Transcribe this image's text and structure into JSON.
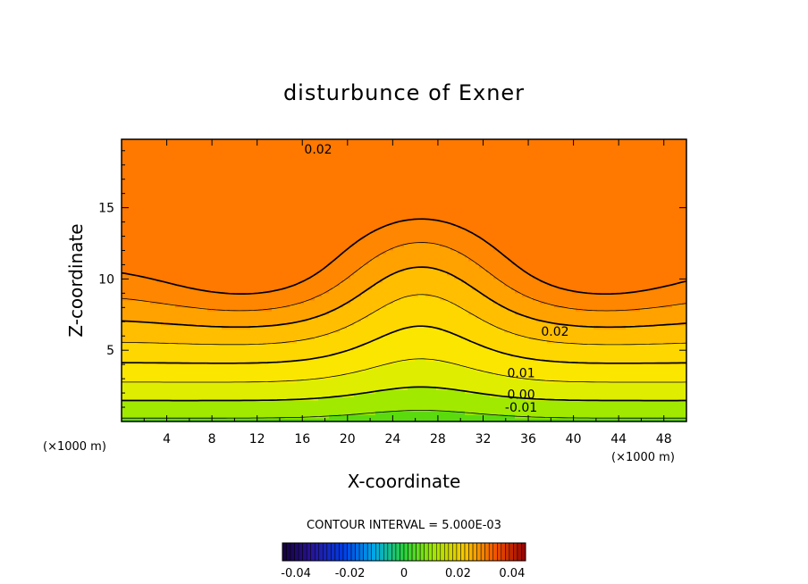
{
  "chart_data": {
    "type": "contour",
    "title": "disturbunce of Exner",
    "xlabel": "X-coordinate",
    "ylabel": "Z-coordinate",
    "x_unit_left": "(×1000 m)",
    "x_unit_right": "(×1000 m)",
    "xlim": [
      0,
      50
    ],
    "ylim": [
      0,
      19.8
    ],
    "x_ticks": [
      4,
      8,
      12,
      16,
      20,
      24,
      28,
      32,
      36,
      40,
      44,
      48
    ],
    "x_tick_labels": [
      "4",
      "8",
      "12",
      "16",
      "20",
      "24",
      "28",
      "32",
      "36",
      "40",
      "44",
      "48"
    ],
    "y_ticks": [
      5,
      10,
      15
    ],
    "y_tick_labels": [
      "5",
      "10",
      "15"
    ],
    "contour_interval_text": "CONTOUR INTERVAL = 5.000E-03",
    "contour_labels": [
      "0.02",
      "0.02",
      "0.01",
      "0.00",
      "-0.01"
    ],
    "colorbar": {
      "range": [
        -0.045,
        0.045
      ],
      "tick_values": [
        -0.04,
        -0.02,
        0,
        0.02,
        0.04
      ],
      "tick_labels": [
        "-0.04",
        "-0.02",
        "0",
        "0.02",
        "0.04"
      ]
    },
    "colors": {
      "minimum": "#00eaff",
      "low": "#22d13a",
      "mid": "#b8ee00",
      "high_band": "#ffe200",
      "peak": "#ff9a00"
    }
  }
}
